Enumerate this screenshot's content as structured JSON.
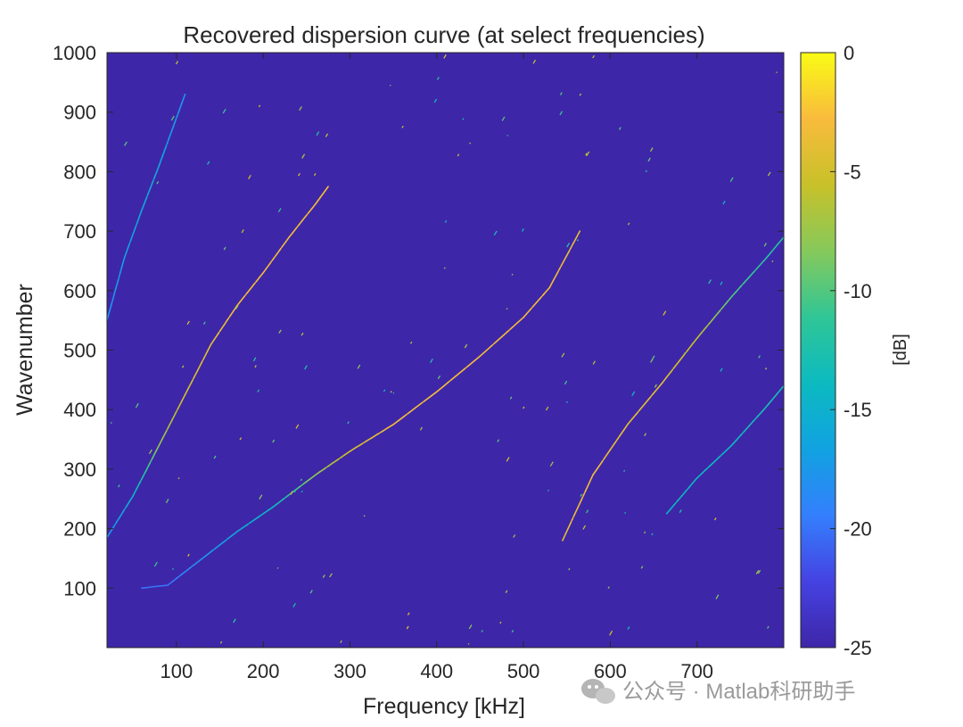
{
  "chart_data": {
    "type": "heatmap",
    "title": "Recovered dispersion curve (at select frequencies)",
    "xlabel": "Frequency [kHz]",
    "ylabel": "Wavenumber",
    "xlim": [
      20,
      800
    ],
    "ylim": [
      0,
      1000
    ],
    "xticks": [
      100,
      200,
      300,
      400,
      500,
      600,
      700
    ],
    "yticks": [
      100,
      200,
      300,
      400,
      500,
      600,
      700,
      800,
      900,
      1000
    ],
    "colorbar": {
      "label": "[dB]",
      "range": [
        -25,
        0
      ],
      "ticks": [
        0,
        -5,
        -10,
        -15,
        -20,
        -25
      ],
      "colormap": "parula"
    },
    "background_value": -25,
    "curves": [
      {
        "points": [
          [
            20,
            185
          ],
          [
            50,
            255
          ],
          [
            80,
            340
          ],
          [
            110,
            425
          ],
          [
            140,
            510
          ],
          [
            170,
            575
          ],
          [
            200,
            630
          ],
          [
            230,
            690
          ],
          [
            260,
            745
          ],
          [
            275,
            775
          ]
        ],
        "levels": [
          -18,
          -15,
          -8,
          -5,
          -4,
          -3,
          -3,
          -3,
          -3,
          -3
        ]
      },
      {
        "points": [
          [
            60,
            100
          ],
          [
            90,
            105
          ],
          [
            130,
            150
          ],
          [
            170,
            195
          ],
          [
            210,
            235
          ],
          [
            260,
            290
          ],
          [
            300,
            330
          ],
          [
            350,
            375
          ],
          [
            400,
            430
          ],
          [
            450,
            490
          ],
          [
            500,
            555
          ],
          [
            530,
            605
          ],
          [
            565,
            700
          ]
        ],
        "levels": [
          -20,
          -20,
          -18,
          -16,
          -14,
          -8,
          -5,
          -3,
          -3,
          -3,
          -3,
          -3,
          -4
        ]
      },
      {
        "points": [
          [
            545,
            180
          ],
          [
            580,
            290
          ],
          [
            620,
            375
          ],
          [
            660,
            445
          ],
          [
            700,
            520
          ],
          [
            740,
            590
          ],
          [
            780,
            655
          ],
          [
            800,
            690
          ]
        ],
        "levels": [
          -4,
          -3,
          -4,
          -4,
          -6,
          -10,
          -12,
          -12
        ]
      },
      {
        "points": [
          [
            665,
            225
          ],
          [
            700,
            285
          ],
          [
            740,
            340
          ],
          [
            780,
            405
          ],
          [
            800,
            440
          ]
        ],
        "levels": [
          -14,
          -14,
          -14,
          -13,
          -13
        ]
      },
      {
        "points": [
          [
            20,
            550
          ],
          [
            40,
            655
          ],
          [
            60,
            735
          ],
          [
            80,
            810
          ],
          [
            110,
            930
          ]
        ],
        "levels": [
          -18,
          -17,
          -16,
          -16,
          -18
        ]
      }
    ],
    "colors": {
      "background": "#3e26a8",
      "parula_stops": [
        "#3e26a8",
        "#4542e2",
        "#347ffd",
        "#11a2e1",
        "#0cbac0",
        "#30c696",
        "#86c95b",
        "#c8c129",
        "#f9bb3d",
        "#f9fb15"
      ]
    }
  },
  "watermark": {
    "text": "公众号 · Matlab科研助手",
    "icon": "wechat-icon"
  }
}
